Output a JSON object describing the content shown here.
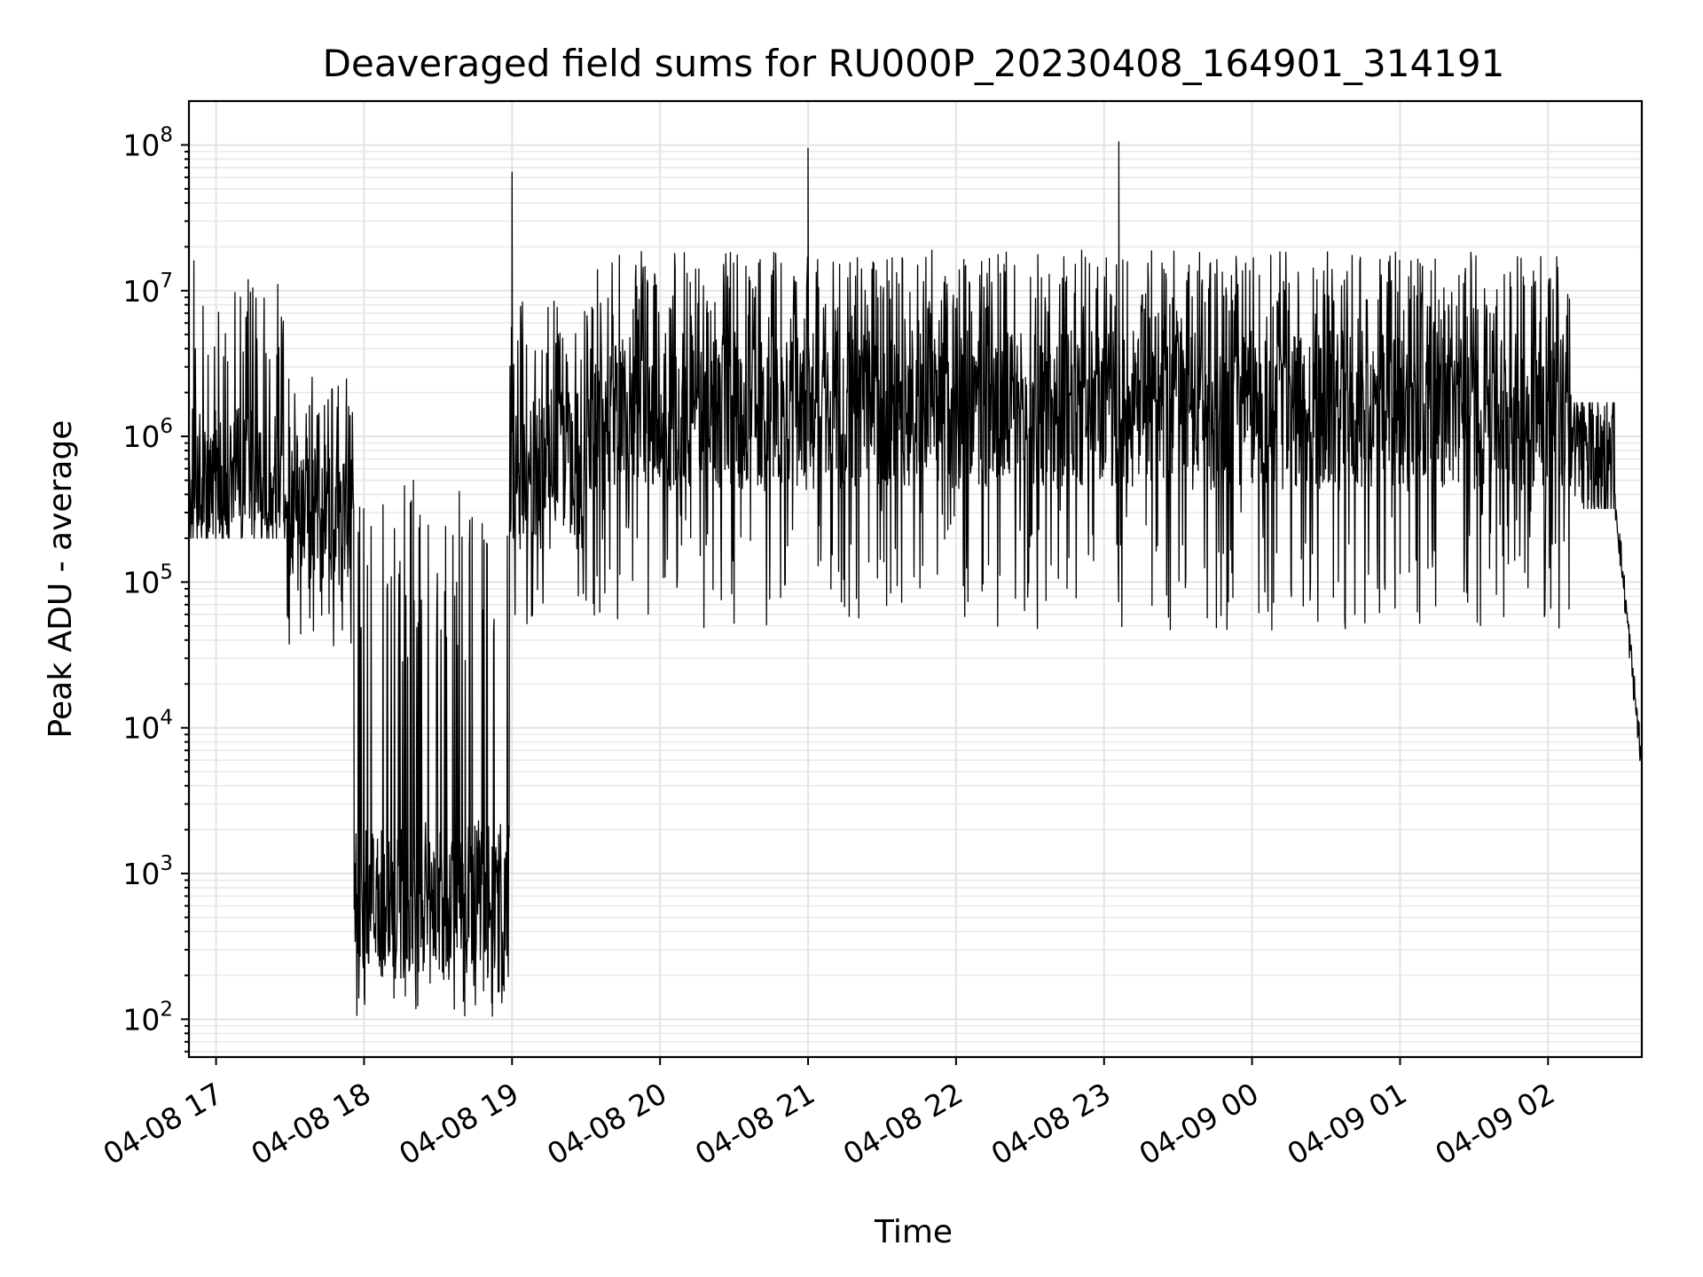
{
  "chart_data": {
    "type": "line",
    "title": "Deaveraged field sums for RU000P_20230408_164901_314191",
    "xlabel": "Time",
    "ylabel": "Peak ADU - average",
    "yscale": "log",
    "ylim": [
      55,
      200000000
    ],
    "xlim": [
      "04-08 16:49",
      "04-09 02:38"
    ],
    "grid": true,
    "x_ticks": [
      {
        "t": "04-08 17:00",
        "label": "04-08 17"
      },
      {
        "t": "04-08 18:00",
        "label": "04-08 18"
      },
      {
        "t": "04-08 19:00",
        "label": "04-08 19"
      },
      {
        "t": "04-08 20:00",
        "label": "04-08 20"
      },
      {
        "t": "04-08 21:00",
        "label": "04-08 21"
      },
      {
        "t": "04-08 22:00",
        "label": "04-08 22"
      },
      {
        "t": "04-08 23:00",
        "label": "04-08 23"
      },
      {
        "t": "04-09 00:00",
        "label": "04-09 00"
      },
      {
        "t": "04-09 01:00",
        "label": "04-09 01"
      },
      {
        "t": "04-09 02:00",
        "label": "04-09 02"
      }
    ],
    "y_ticks": [
      {
        "value": 100,
        "base": "10",
        "exp": "2"
      },
      {
        "value": 1000,
        "base": "10",
        "exp": "3"
      },
      {
        "value": 10000,
        "base": "10",
        "exp": "4"
      },
      {
        "value": 100000,
        "base": "10",
        "exp": "5"
      },
      {
        "value": 1000000,
        "base": "10",
        "exp": "6"
      },
      {
        "value": 10000000,
        "base": "10",
        "exp": "7"
      },
      {
        "value": 100000000,
        "base": "10",
        "exp": "8"
      }
    ],
    "series": [
      {
        "color": "#000000",
        "segments": [
          {
            "start": "04-08 16:49",
            "end": "04-08 17:28",
            "typical": 500000,
            "low": 200000,
            "high": 13000000
          },
          {
            "start": "04-08 17:28",
            "end": "04-08 17:56",
            "typical": 300000,
            "low": 30000,
            "high": 2600000
          },
          {
            "start": "04-08 17:56",
            "end": "04-08 18:59",
            "typical": 650,
            "low": 105,
            "high": 500000
          },
          {
            "start": "04-08 18:59",
            "end": "04-08 19:30",
            "typical": 600000,
            "low": 40000,
            "high": 9500000
          },
          {
            "start": "04-08 19:30",
            "end": "04-09 02:10",
            "typical": 1500000,
            "low": 47000,
            "high": 19000000
          },
          {
            "start": "04-09 02:10",
            "end": "04-09 02:27",
            "typical": 700000,
            "low": 320000,
            "high": 1700000
          },
          {
            "start": "04-09 02:27",
            "end": "04-09 02:38",
            "typical": 60000,
            "low": 5500,
            "high": 400000
          }
        ],
        "spikes": [
          {
            "t": "04-08 16:51",
            "value": 16000000
          },
          {
            "t": "04-08 18:20",
            "value": 500000
          },
          {
            "t": "04-08 19:00",
            "value": 65000000
          },
          {
            "t": "04-08 21:00",
            "value": 95000000
          },
          {
            "t": "04-08 23:06",
            "value": 105000000
          },
          {
            "t": "04-08 18:52",
            "value": 105
          },
          {
            "t": "04-09 00:08",
            "value": 47000
          }
        ]
      }
    ]
  }
}
